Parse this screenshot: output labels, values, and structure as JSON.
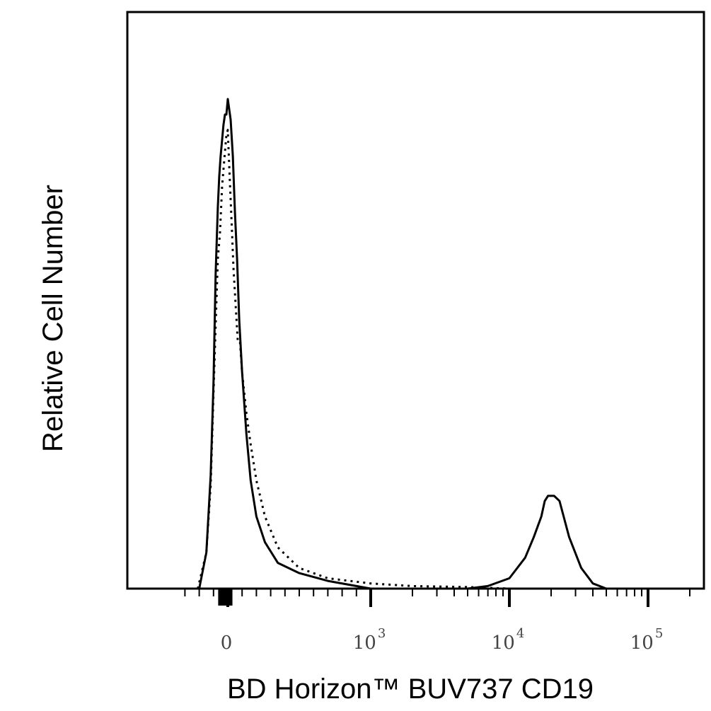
{
  "chart_data": {
    "type": "line",
    "title": "",
    "xlabel": "BD Horizon™ BUV737 CD19",
    "ylabel": "Relative Cell Number",
    "x_scale": "biexponential (linear near 0, logarithmic above ~10^3)",
    "x_ticks": [
      {
        "value": 0,
        "base": "0",
        "exp": ""
      },
      {
        "value": 1000,
        "base": "10",
        "exp": "3"
      },
      {
        "value": 10000,
        "base": "10",
        "exp": "4"
      },
      {
        "value": 100000,
        "base": "10",
        "exp": "5"
      }
    ],
    "xlim": [
      -200,
      200000
    ],
    "ylim": [
      0,
      1
    ],
    "grid": false,
    "legend": "none",
    "series": [
      {
        "style": "solid",
        "x": [
          -200,
          -150,
          -120,
          -100,
          -85,
          -70,
          -60,
          -50,
          -40,
          -30,
          -20,
          -10,
          0,
          10,
          20,
          35,
          50,
          65,
          80,
          100,
          130,
          160,
          200,
          260,
          350,
          500,
          700,
          1000,
          2000,
          3000,
          5000,
          7000,
          10000,
          13000,
          15000,
          17000,
          18000,
          19000,
          21000,
          23000,
          27000,
          33000,
          40000,
          50000,
          100000
        ],
        "y": [
          0.0,
          0.07,
          0.22,
          0.4,
          0.61,
          0.74,
          0.8,
          0.84,
          0.87,
          0.9,
          0.92,
          0.92,
          0.95,
          0.93,
          0.91,
          0.84,
          0.73,
          0.64,
          0.52,
          0.42,
          0.3,
          0.21,
          0.14,
          0.09,
          0.05,
          0.03,
          0.015,
          0.0,
          0.0,
          0.0,
          0.0,
          0.005,
          0.02,
          0.06,
          0.1,
          0.14,
          0.17,
          0.18,
          0.18,
          0.17,
          0.1,
          0.04,
          0.01,
          0.0,
          0.0
        ]
      },
      {
        "style": "dotted",
        "x": [
          -210,
          -150,
          -120,
          -100,
          -85,
          -70,
          -55,
          -40,
          -25,
          -10,
          0,
          10,
          25,
          40,
          55,
          70,
          85,
          100,
          130,
          160,
          200,
          260,
          350,
          500,
          700,
          1000,
          2000,
          5000,
          10000,
          30000,
          100000,
          180000
        ],
        "y": [
          0.0,
          0.07,
          0.2,
          0.38,
          0.51,
          0.64,
          0.69,
          0.78,
          0.83,
          0.88,
          0.89,
          0.82,
          0.72,
          0.62,
          0.55,
          0.48,
          0.48,
          0.42,
          0.34,
          0.28,
          0.21,
          0.14,
          0.08,
          0.04,
          0.02,
          0.01,
          0.005,
          0.003,
          0.0,
          0.0,
          0.0,
          0.0
        ]
      }
    ]
  }
}
